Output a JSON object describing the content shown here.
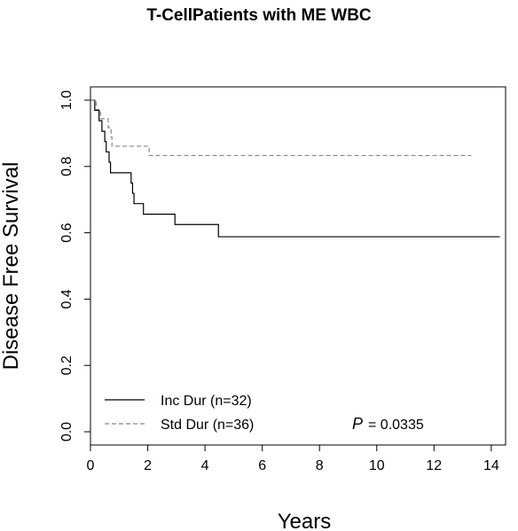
{
  "chart_data": {
    "type": "line",
    "title": "T-CellPatients with ME WBC",
    "xlabel": "Years",
    "ylabel": "Disease Free Survival",
    "xlim": [
      0,
      14.5
    ],
    "ylim": [
      -0.04,
      1.04
    ],
    "x_ticks": [
      "0",
      "2",
      "4",
      "6",
      "8",
      "10",
      "12",
      "14"
    ],
    "y_ticks": [
      "0.0",
      "0.2",
      "0.4",
      "0.6",
      "0.8",
      "1.0"
    ],
    "grid": false,
    "legend_position": "bottom-left",
    "annotation": {
      "label": "P",
      "value": "= 0.0335"
    },
    "series": [
      {
        "name": "Inc Dur (n=32)",
        "line_style": "solid",
        "color": "#000000",
        "steps": [
          [
            0.0,
            1.0
          ],
          [
            0.15,
            0.969
          ],
          [
            0.3,
            0.938
          ],
          [
            0.4,
            0.906
          ],
          [
            0.5,
            0.875
          ],
          [
            0.55,
            0.844
          ],
          [
            0.65,
            0.813
          ],
          [
            0.7,
            0.781
          ],
          [
            1.42,
            0.75
          ],
          [
            1.47,
            0.719
          ],
          [
            1.52,
            0.688
          ],
          [
            1.85,
            0.656
          ],
          [
            2.95,
            0.625
          ],
          [
            4.47,
            0.588
          ],
          [
            14.3,
            0.588
          ]
        ]
      },
      {
        "name": "Std Dur (n=36)",
        "line_style": "dashed",
        "color": "#888888",
        "steps": [
          [
            0.0,
            1.0
          ],
          [
            0.2,
            0.972
          ],
          [
            0.35,
            0.944
          ],
          [
            0.62,
            0.917
          ],
          [
            0.72,
            0.889
          ],
          [
            0.75,
            0.861
          ],
          [
            2.05,
            0.833
          ],
          [
            13.3,
            0.833
          ]
        ]
      }
    ]
  }
}
